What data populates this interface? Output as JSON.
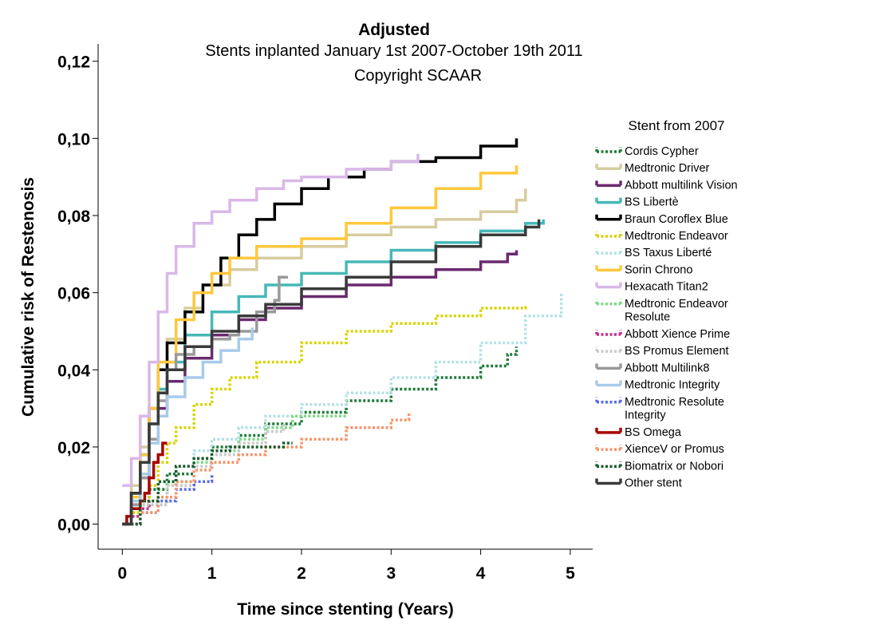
{
  "chart_data": {
    "type": "line",
    "title": "Adjusted",
    "subtitle": "Stents inplanted January 1st 2007-October 19th 2011",
    "subtitle2": "Copyright SCAAR",
    "xlabel": "Time since stenting (Years)",
    "ylabel": "Cumulative risk of Restenosis",
    "xlim": [
      -0.27,
      5.25
    ],
    "ylim": [
      -0.0065,
      0.1245
    ],
    "x_ticks": [
      "0",
      "1",
      "2",
      "3",
      "4",
      "5"
    ],
    "y_ticks": [
      "0,00",
      "0,02",
      "0,04",
      "0,06",
      "0,08",
      "0,10",
      "0,12"
    ],
    "legend_title": "Stent from 2007",
    "legend_position": "right",
    "series": [
      {
        "name": "Cordis Cypher",
        "color": "#1f7a3a",
        "dash": "dotted",
        "x": [
          0,
          0.1,
          0.3,
          0.5,
          0.8,
          1.0,
          1.3,
          1.6,
          2.0,
          2.5,
          3.0,
          3.5,
          4.0,
          4.3,
          4.4
        ],
        "y": [
          0,
          0.004,
          0.009,
          0.013,
          0.017,
          0.02,
          0.023,
          0.026,
          0.029,
          0.032,
          0.035,
          0.038,
          0.041,
          0.044,
          0.046
        ]
      },
      {
        "name": "Medtronic Driver",
        "color": "#d6cc9e",
        "dash": "solid",
        "x": [
          0,
          0.1,
          0.2,
          0.3,
          0.4,
          0.5,
          0.7,
          0.9,
          1.2,
          1.5,
          2.0,
          2.5,
          3.0,
          3.5,
          4.0,
          4.4,
          4.5
        ],
        "y": [
          0,
          0.01,
          0.02,
          0.03,
          0.04,
          0.048,
          0.056,
          0.062,
          0.066,
          0.069,
          0.072,
          0.075,
          0.077,
          0.079,
          0.081,
          0.084,
          0.087
        ]
      },
      {
        "name": "Abbott multilink Vision",
        "color": "#6a2a6e",
        "dash": "solid",
        "x": [
          0,
          0.1,
          0.2,
          0.3,
          0.4,
          0.5,
          0.7,
          1.0,
          1.3,
          1.6,
          2.0,
          2.5,
          3.0,
          3.5,
          4.0,
          4.3,
          4.4
        ],
        "y": [
          0,
          0.005,
          0.012,
          0.022,
          0.03,
          0.037,
          0.043,
          0.049,
          0.053,
          0.056,
          0.059,
          0.062,
          0.064,
          0.066,
          0.068,
          0.07,
          0.071
        ]
      },
      {
        "name": "BS Libertè",
        "color": "#47b8b8",
        "dash": "solid",
        "x": [
          0,
          0.1,
          0.2,
          0.3,
          0.4,
          0.5,
          0.7,
          1.0,
          1.3,
          1.6,
          2.0,
          2.5,
          3.0,
          3.5,
          4.0,
          4.5,
          4.7
        ],
        "y": [
          0,
          0.008,
          0.016,
          0.026,
          0.035,
          0.042,
          0.049,
          0.055,
          0.059,
          0.062,
          0.065,
          0.068,
          0.071,
          0.073,
          0.076,
          0.078,
          0.079
        ]
      },
      {
        "name": "Braun Coroflex Blue",
        "color": "#000000",
        "dash": "solid",
        "x": [
          0,
          0.1,
          0.2,
          0.3,
          0.4,
          0.5,
          0.7,
          0.9,
          1.1,
          1.3,
          1.5,
          1.7,
          2.0,
          2.3,
          2.7,
          3.0,
          3.5,
          4.0,
          4.4
        ],
        "y": [
          0,
          0.008,
          0.018,
          0.03,
          0.04,
          0.047,
          0.055,
          0.062,
          0.069,
          0.075,
          0.079,
          0.083,
          0.087,
          0.09,
          0.092,
          0.094,
          0.095,
          0.098,
          0.1
        ]
      },
      {
        "name": "Medtronic Endeavor",
        "color": "#d9d300",
        "dash": "dotted",
        "x": [
          0,
          0.1,
          0.2,
          0.3,
          0.4,
          0.5,
          0.6,
          0.8,
          1.0,
          1.2,
          1.5,
          2.0,
          2.5,
          3.0,
          3.5,
          4.0,
          4.5
        ],
        "y": [
          0,
          0.003,
          0.006,
          0.01,
          0.016,
          0.021,
          0.025,
          0.031,
          0.035,
          0.038,
          0.042,
          0.047,
          0.05,
          0.052,
          0.054,
          0.056,
          0.057
        ]
      },
      {
        "name": "BS Taxus Liberté",
        "color": "#b3e2e4",
        "dash": "dotted",
        "x": [
          0,
          0.2,
          0.4,
          0.6,
          0.8,
          1.0,
          1.3,
          1.6,
          2.0,
          2.5,
          3.0,
          3.5,
          4.0,
          4.5,
          4.9
        ],
        "y": [
          0,
          0.006,
          0.011,
          0.015,
          0.019,
          0.022,
          0.025,
          0.028,
          0.031,
          0.034,
          0.038,
          0.042,
          0.047,
          0.054,
          0.06
        ]
      },
      {
        "name": "Sorin Chrono",
        "color": "#ffc83c",
        "dash": "solid",
        "x": [
          0,
          0.1,
          0.2,
          0.3,
          0.4,
          0.6,
          0.8,
          1.0,
          1.2,
          1.5,
          2.0,
          2.5,
          3.0,
          3.5,
          4.0,
          4.4
        ],
        "y": [
          0,
          0.007,
          0.018,
          0.03,
          0.042,
          0.053,
          0.06,
          0.065,
          0.069,
          0.072,
          0.074,
          0.078,
          0.082,
          0.087,
          0.091,
          0.093
        ]
      },
      {
        "name": "Hexacath Titan2",
        "color": "#d9b8e8",
        "dash": "solid",
        "x": [
          0,
          0.1,
          0.2,
          0.3,
          0.4,
          0.5,
          0.6,
          0.8,
          1.0,
          1.2,
          1.5,
          1.8,
          2.0,
          2.5,
          3.0,
          3.3
        ],
        "y": [
          0.01,
          0.017,
          0.028,
          0.042,
          0.055,
          0.065,
          0.072,
          0.078,
          0.081,
          0.084,
          0.087,
          0.089,
          0.09,
          0.092,
          0.094,
          0.096
        ]
      },
      {
        "name": "Medtronic Endeavor Resolute",
        "color": "#7fda88",
        "dash": "dotted",
        "x": [
          0,
          0.2,
          0.5,
          0.8,
          1.0,
          1.3,
          1.6,
          1.9,
          2.2,
          2.5
        ],
        "y": [
          0,
          0.005,
          0.011,
          0.016,
          0.019,
          0.022,
          0.025,
          0.028,
          0.028,
          0.028
        ]
      },
      {
        "name": "Abbott Xience Prime",
        "color": "#c42f8e",
        "dash": "dotted",
        "x": [
          0,
          0.1,
          0.2,
          0.3
        ],
        "y": [
          0,
          0.002,
          0.004,
          0.006
        ]
      },
      {
        "name": "BS Promus Element",
        "color": "#c9c9c9",
        "dash": "dotted",
        "x": [
          0,
          0.2,
          0.5,
          0.8,
          1.0,
          1.3,
          1.6,
          1.8
        ],
        "y": [
          0,
          0.005,
          0.01,
          0.015,
          0.018,
          0.021,
          0.024,
          0.026
        ]
      },
      {
        "name": "Abbott Multilink8",
        "color": "#9a9a9a",
        "dash": "solid",
        "x": [
          0,
          0.1,
          0.2,
          0.3,
          0.4,
          0.5,
          0.6,
          0.8,
          1.0,
          1.2,
          1.3,
          1.5,
          1.7,
          1.75,
          1.85
        ],
        "y": [
          0,
          0.005,
          0.012,
          0.022,
          0.032,
          0.04,
          0.044,
          0.046,
          0.048,
          0.049,
          0.05,
          0.055,
          0.058,
          0.064,
          0.064
        ]
      },
      {
        "name": "Medtronic Integrity",
        "color": "#a8cbea",
        "dash": "solid",
        "x": [
          0,
          0.1,
          0.2,
          0.3,
          0.4,
          0.5,
          0.7,
          0.9,
          1.1,
          1.3,
          1.45
        ],
        "y": [
          0,
          0.006,
          0.013,
          0.021,
          0.028,
          0.033,
          0.038,
          0.042,
          0.045,
          0.048,
          0.051
        ]
      },
      {
        "name": "Medtronic Resolute Integrity",
        "color": "#5a6ce8",
        "dash": "dotted",
        "x": [
          0,
          0.2,
          0.4,
          0.6,
          0.8,
          1.0
        ],
        "y": [
          0,
          0.003,
          0.006,
          0.009,
          0.011,
          0.013
        ]
      },
      {
        "name": "BS Omega",
        "color": "#a80000",
        "dash": "solid",
        "x": [
          0,
          0.05,
          0.1,
          0.2,
          0.25,
          0.3,
          0.35,
          0.4,
          0.45,
          0.5
        ],
        "y": [
          0,
          0.002,
          0.004,
          0.006,
          0.008,
          0.012,
          0.016,
          0.018,
          0.021,
          0.021
        ]
      },
      {
        "name": "XienceV or Promus",
        "color": "#f5966a",
        "dash": "dotted",
        "x": [
          0,
          0.2,
          0.4,
          0.6,
          0.8,
          1.0,
          1.3,
          1.6,
          2.0,
          2.5,
          3.0,
          3.2
        ],
        "y": [
          0,
          0.003,
          0.007,
          0.011,
          0.014,
          0.016,
          0.018,
          0.02,
          0.022,
          0.025,
          0.027,
          0.029
        ]
      },
      {
        "name": "Biomatrix or Nobori",
        "color": "#1a5a2a",
        "dash": "dotted",
        "x": [
          0,
          0.2,
          0.4,
          0.6,
          0.8,
          1.0,
          1.2,
          1.5,
          1.8,
          1.9
        ],
        "y": [
          0,
          0.006,
          0.011,
          0.015,
          0.017,
          0.019,
          0.02,
          0.02,
          0.021,
          0.021
        ]
      },
      {
        "name": "Other stent",
        "color": "#3a3a3a",
        "dash": "solid",
        "x": [
          0,
          0.1,
          0.2,
          0.3,
          0.4,
          0.5,
          0.7,
          1.0,
          1.3,
          1.6,
          2.0,
          2.5,
          3.0,
          3.5,
          4.0,
          4.5,
          4.65
        ],
        "y": [
          0,
          0.008,
          0.016,
          0.026,
          0.034,
          0.04,
          0.046,
          0.05,
          0.054,
          0.057,
          0.061,
          0.064,
          0.068,
          0.072,
          0.075,
          0.077,
          0.079
        ]
      }
    ]
  }
}
